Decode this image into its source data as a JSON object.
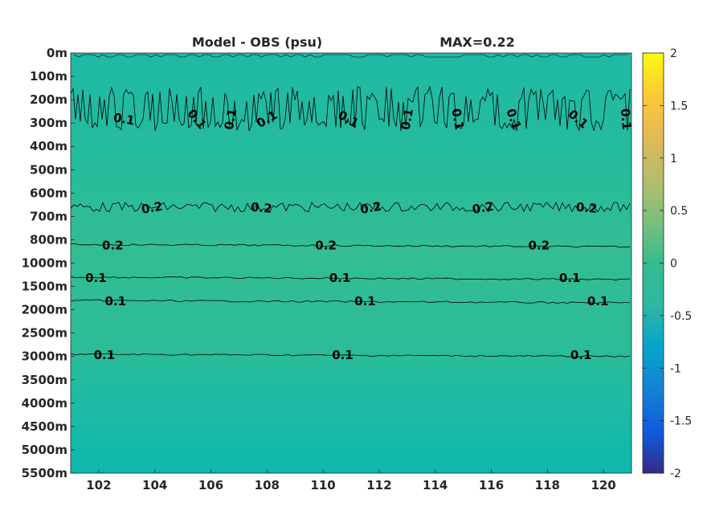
{
  "chart_data": {
    "type": "heatmap",
    "title_left": "Model - OBS (psu)",
    "title_right": "MAX=0.22",
    "x_ticks": [
      "102",
      "104",
      "106",
      "108",
      "110",
      "112",
      "114",
      "116",
      "118",
      "120"
    ],
    "x_tick_values": [
      102,
      104,
      106,
      108,
      110,
      112,
      114,
      116,
      118,
      120
    ],
    "xlim": [
      101,
      121
    ],
    "y_ticks": [
      "0m",
      "100m",
      "200m",
      "300m",
      "400m",
      "500m",
      "600m",
      "700m",
      "800m",
      "1000m",
      "1500m",
      "2000m",
      "2500m",
      "3000m",
      "3500m",
      "4000m",
      "4500m",
      "5000m",
      "5500m"
    ],
    "colorbar": {
      "ticks": [
        "2",
        "1.5",
        "1",
        "0.5",
        "0",
        "-0.5",
        "-1",
        "-1.5",
        "-2"
      ],
      "tick_values": [
        2,
        1.5,
        1,
        0.5,
        0,
        -0.5,
        -1,
        -1.5,
        -2
      ],
      "range": [
        -2,
        2
      ],
      "colormap": "parula"
    },
    "contours": [
      {
        "level": 0.1,
        "depth_index": 2.8,
        "labels": [
          {
            "text": "0.1",
            "x": 102.9,
            "rot": 10
          },
          {
            "text": "0.1",
            "x": 105.5,
            "rot": 50
          },
          {
            "text": "0.1",
            "x": 106.7,
            "rot": -80
          },
          {
            "text": "0.1",
            "x": 108.0,
            "rot": -30
          },
          {
            "text": "0.1",
            "x": 110.9,
            "rot": 30
          },
          {
            "text": "0.1",
            "x": 113.0,
            "rot": -80
          },
          {
            "text": "0.1",
            "x": 114.8,
            "rot": 80
          },
          {
            "text": "0.1",
            "x": 116.8,
            "rot": 70
          },
          {
            "text": "0.1",
            "x": 119.1,
            "rot": 40
          },
          {
            "text": "0.1",
            "x": 120.8,
            "rot": 85
          }
        ]
      },
      {
        "level": 0.2,
        "depth_index": 6.6,
        "labels": [
          {
            "text": "0.2",
            "x": 103.9,
            "rot": -10
          },
          {
            "text": "0.2",
            "x": 107.8,
            "rot": 5
          },
          {
            "text": "0.2",
            "x": 111.7,
            "rot": -10
          },
          {
            "text": "0.2",
            "x": 115.7,
            "rot": -10
          },
          {
            "text": "0.2",
            "x": 119.4,
            "rot": 5
          }
        ]
      },
      {
        "level": 0.2,
        "depth_index": 8.2,
        "labels": [
          {
            "text": "0.2",
            "x": 102.5,
            "rot": 0
          },
          {
            "text": "0.2",
            "x": 110.1,
            "rot": 0
          },
          {
            "text": "0.2",
            "x": 117.7,
            "rot": 0
          }
        ]
      },
      {
        "level": 0.1,
        "depth_index": 9.6,
        "labels": [
          {
            "text": "0.1",
            "x": 101.9,
            "rot": 0
          },
          {
            "text": "0.1",
            "x": 110.6,
            "rot": 0
          },
          {
            "text": "0.1",
            "x": 118.8,
            "rot": 0
          }
        ]
      },
      {
        "level": 0.1,
        "depth_index": 10.6,
        "labels": [
          {
            "text": "0.1",
            "x": 102.6,
            "rot": 0
          },
          {
            "text": "0.1",
            "x": 111.5,
            "rot": 0
          },
          {
            "text": "0.1",
            "x": 119.8,
            "rot": 0
          }
        ]
      },
      {
        "level": 0.1,
        "depth_index": 12.9,
        "labels": [
          {
            "text": "0.1",
            "x": 102.2,
            "rot": 0
          },
          {
            "text": "0.1",
            "x": 110.7,
            "rot": 0
          },
          {
            "text": "0.1",
            "x": 119.2,
            "rot": 0
          }
        ]
      }
    ]
  }
}
